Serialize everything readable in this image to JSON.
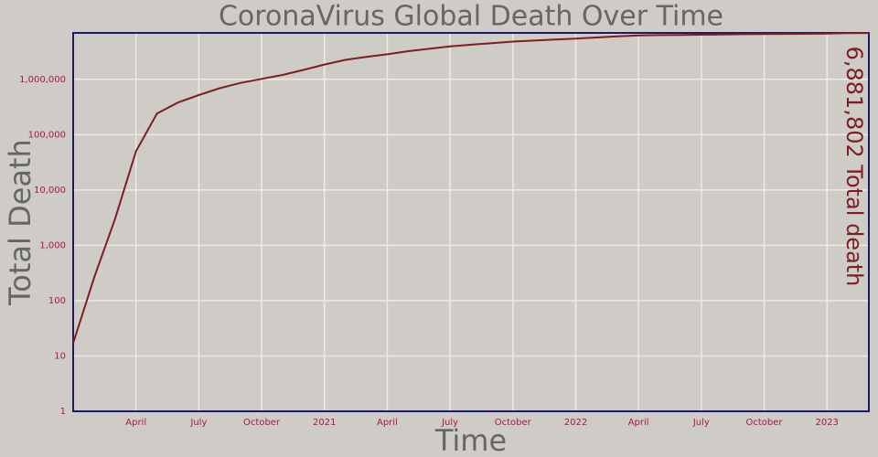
{
  "chart_data": {
    "type": "line",
    "title": "CoronaVirus Global Death Over Time",
    "x_label": "Time",
    "y_label": "Total Death",
    "annotation": "6,881,802 Total death",
    "x": [
      "2020-01",
      "2020-02",
      "2020-03",
      "2020-04",
      "2020-05",
      "2020-06",
      "2020-07",
      "2020-08",
      "2020-09",
      "2020-10",
      "2020-11",
      "2020-12",
      "2021-01",
      "2021-02",
      "2021-03",
      "2021-04",
      "2021-05",
      "2021-06",
      "2021-07",
      "2021-08",
      "2021-09",
      "2021-10",
      "2021-11",
      "2021-12",
      "2022-01",
      "2022-02",
      "2022-03",
      "2022-04",
      "2022-05",
      "2022-06",
      "2022-07",
      "2022-08",
      "2022-09",
      "2022-10",
      "2022-11",
      "2022-12",
      "2023-01",
      "2023-02",
      "2023-03"
    ],
    "series": [
      {
        "name": "Total Death",
        "color": "#7b1f23",
        "values": [
          17,
          260,
          3000,
          50000,
          240000,
          380000,
          520000,
          690000,
          860000,
          1020000,
          1200000,
          1480000,
          1850000,
          2250000,
          2550000,
          2830000,
          3220000,
          3560000,
          3950000,
          4230000,
          4510000,
          4800000,
          5010000,
          5220000,
          5450000,
          5710000,
          6000000,
          6200000,
          6290000,
          6340000,
          6390000,
          6470000,
          6530000,
          6560000,
          6610000,
          6650000,
          6710000,
          6830000,
          6881802
        ]
      }
    ],
    "xlim": [
      "2020-01",
      "2023-03"
    ],
    "xticks": [
      {
        "value": "2020-04",
        "label": "April"
      },
      {
        "value": "2020-07",
        "label": "July"
      },
      {
        "value": "2020-10",
        "label": "October"
      },
      {
        "value": "2021-01",
        "label": "2021"
      },
      {
        "value": "2021-04",
        "label": "April"
      },
      {
        "value": "2021-07",
        "label": "July"
      },
      {
        "value": "2021-10",
        "label": "October"
      },
      {
        "value": "2022-01",
        "label": "2022"
      },
      {
        "value": "2022-04",
        "label": "April"
      },
      {
        "value": "2022-07",
        "label": "July"
      },
      {
        "value": "2022-10",
        "label": "October"
      },
      {
        "value": "2023-01",
        "label": "2023"
      }
    ],
    "ylim": [
      1,
      6900000
    ],
    "log_y": true,
    "yticks": [
      1,
      10,
      100,
      {
        "value": 1000,
        "label": "1,000"
      },
      {
        "value": 10000,
        "label": "10,000"
      },
      {
        "value": 100000,
        "label": "100,000"
      },
      {
        "value": 1000000,
        "label": "1,000,000"
      }
    ],
    "grid": true
  }
}
